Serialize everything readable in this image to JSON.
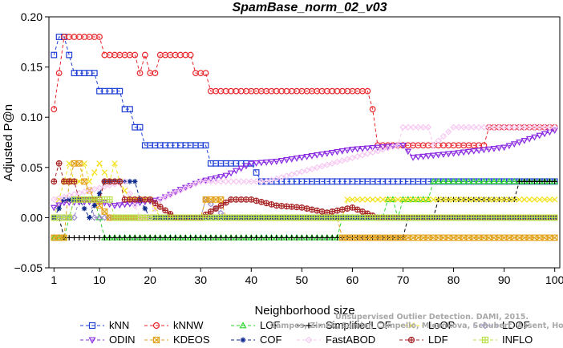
{
  "chart_data": {
    "type": "line",
    "title": "SpamBase_norm_02_v03",
    "xlabel": "Neighborhood size",
    "ylabel": "Adjusted P@n",
    "xlim": [
      0,
      101
    ],
    "ylim": [
      -0.05,
      0.2
    ],
    "xticks": [
      "1",
      "10",
      "20",
      "30",
      "40",
      "50",
      "60",
      "70",
      "80",
      "90",
      "100"
    ],
    "yticks": [
      "−0.05",
      "0.00",
      "0.05",
      "0.10",
      "0.15",
      "0.20"
    ],
    "grid": false,
    "legend": "bottom",
    "series": [
      {
        "name": "kNN",
        "color": "#1f3fd6",
        "marker": "square",
        "points": [
          [
            1,
            0.162
          ],
          [
            2,
            0.18
          ],
          [
            3,
            0.18
          ],
          [
            4,
            0.162
          ],
          [
            5,
            0.144
          ],
          [
            9,
            0.144
          ],
          [
            10,
            0.126
          ],
          [
            14,
            0.126
          ],
          [
            15,
            0.108
          ],
          [
            16,
            0.108
          ],
          [
            17,
            0.09
          ],
          [
            18,
            0.09
          ],
          [
            19,
            0.072
          ],
          [
            31,
            0.072
          ],
          [
            32,
            0.054
          ],
          [
            40,
            0.054
          ],
          [
            41,
            0.045
          ],
          [
            42,
            0.036
          ],
          [
            100,
            0.036
          ]
        ]
      },
      {
        "name": "kNNW",
        "color": "#e8262b",
        "marker": "circle",
        "points": [
          [
            1,
            0.108
          ],
          [
            2,
            0.144
          ],
          [
            3,
            0.18
          ],
          [
            10,
            0.18
          ],
          [
            11,
            0.162
          ],
          [
            17,
            0.162
          ],
          [
            18,
            0.144
          ],
          [
            19,
            0.162
          ],
          [
            20,
            0.144
          ],
          [
            21,
            0.144
          ],
          [
            22,
            0.162
          ],
          [
            28,
            0.162
          ],
          [
            29,
            0.144
          ],
          [
            31,
            0.144
          ],
          [
            32,
            0.126
          ],
          [
            63,
            0.126
          ],
          [
            64,
            0.108
          ],
          [
            65,
            0.072
          ],
          [
            86,
            0.072
          ],
          [
            87,
            0.09
          ],
          [
            100,
            0.09
          ]
        ]
      },
      {
        "name": "LOF",
        "color": "#2ed42e",
        "marker": "triangle",
        "points": [
          [
            1,
            -0.02
          ],
          [
            2,
            -0.02
          ],
          [
            3,
            -0.02
          ],
          [
            4,
            0.0
          ],
          [
            5,
            0.018
          ],
          [
            9,
            0.018
          ],
          [
            10,
            0.0
          ],
          [
            11,
            -0.02
          ],
          [
            57,
            -0.02
          ],
          [
            58,
            0.0
          ],
          [
            66,
            0.0
          ],
          [
            67,
            0.018
          ],
          [
            68,
            0.018
          ],
          [
            69,
            0.0
          ],
          [
            70,
            0.018
          ],
          [
            75,
            0.018
          ],
          [
            76,
            0.036
          ],
          [
            100,
            0.036
          ]
        ]
      },
      {
        "name": "SimplifiedLOF",
        "color": "#000000",
        "marker": "plus",
        "points": [
          [
            1,
            0.0
          ],
          [
            2,
            0.0
          ],
          [
            3,
            -0.02
          ],
          [
            57,
            -0.02
          ],
          [
            58,
            -0.02
          ],
          [
            70,
            -0.02
          ],
          [
            71,
            0.0
          ],
          [
            76,
            0.0
          ],
          [
            77,
            0.018
          ],
          [
            92,
            0.018
          ],
          [
            93,
            0.036
          ],
          [
            100,
            0.036
          ]
        ]
      },
      {
        "name": "LoOP",
        "color": "#f2e21c",
        "marker": "x",
        "points": [
          [
            1,
            0.0
          ],
          [
            2,
            0.018
          ],
          [
            3,
            0.036
          ],
          [
            4,
            0.054
          ],
          [
            5,
            0.036
          ],
          [
            6,
            0.036
          ],
          [
            7,
            0.054
          ],
          [
            8,
            0.036
          ],
          [
            10,
            0.054
          ],
          [
            12,
            0.036
          ],
          [
            13,
            0.054
          ],
          [
            14,
            0.036
          ],
          [
            16,
            0.018
          ],
          [
            20,
            0.018
          ],
          [
            22,
            0.0
          ],
          [
            58,
            0.0
          ],
          [
            59,
            0.018
          ],
          [
            100,
            0.018
          ]
        ]
      },
      {
        "name": "LDOF",
        "color": "#9a8cc8",
        "marker": "diamond",
        "points": [
          [
            1,
            0.0
          ],
          [
            5,
            0.0
          ],
          [
            6,
            0.018
          ],
          [
            8,
            0.018
          ],
          [
            9,
            0.0
          ],
          [
            30,
            0.0
          ],
          [
            31,
            0.018
          ],
          [
            35,
            0.0
          ],
          [
            100,
            0.0
          ]
        ]
      },
      {
        "name": "ODIN",
        "color": "#8a2be2",
        "marker": "triangle-down",
        "points": [
          [
            1,
            0.01
          ],
          [
            3,
            0.015
          ],
          [
            10,
            0.016
          ],
          [
            13,
            0.012
          ],
          [
            18,
            0.015
          ],
          [
            22,
            0.018
          ],
          [
            26,
            0.028
          ],
          [
            30,
            0.036
          ],
          [
            35,
            0.042
          ],
          [
            40,
            0.054
          ],
          [
            45,
            0.056
          ],
          [
            50,
            0.06
          ],
          [
            55,
            0.064
          ],
          [
            60,
            0.068
          ],
          [
            70,
            0.072
          ],
          [
            72,
            0.06
          ],
          [
            80,
            0.064
          ],
          [
            90,
            0.07
          ],
          [
            100,
            0.087
          ]
        ]
      },
      {
        "name": "KDEOS",
        "color": "#e3a21a",
        "marker": "square-x",
        "points": [
          [
            1,
            -0.02
          ],
          [
            3,
            -0.02
          ],
          [
            4,
            0.036
          ],
          [
            5,
            0.054
          ],
          [
            6,
            0.054
          ],
          [
            7,
            0.036
          ],
          [
            9,
            0.018
          ],
          [
            12,
            0.0
          ],
          [
            30,
            0.0
          ],
          [
            31,
            0.018
          ],
          [
            34,
            0.018
          ],
          [
            35,
            0.0
          ],
          [
            57,
            0.0
          ],
          [
            58,
            -0.02
          ],
          [
            100,
            -0.02
          ]
        ]
      },
      {
        "name": "COF",
        "color": "#0d2a8c",
        "marker": "asterisk",
        "points": [
          [
            1,
            0.0
          ],
          [
            3,
            0.018
          ],
          [
            6,
            0.018
          ],
          [
            8,
            0.0
          ],
          [
            11,
            0.036
          ],
          [
            17,
            0.036
          ],
          [
            18,
            0.018
          ],
          [
            20,
            0.0
          ],
          [
            100,
            0.0
          ]
        ]
      },
      {
        "name": "FastABOD",
        "color": "#f7c8f2",
        "marker": "diamond",
        "points": [
          [
            1,
            0.018
          ],
          [
            15,
            0.036
          ],
          [
            18,
            0.0
          ],
          [
            20,
            0.0
          ],
          [
            22,
            0.018
          ],
          [
            30,
            0.036
          ],
          [
            43,
            0.036
          ],
          [
            69,
            0.072
          ],
          [
            70,
            0.09
          ],
          [
            75,
            0.09
          ],
          [
            76,
            0.072
          ],
          [
            80,
            0.09
          ],
          [
            100,
            0.09
          ]
        ]
      },
      {
        "name": "LDF",
        "color": "#a82424",
        "marker": "circle-plus",
        "points": [
          [
            1,
            0.036
          ],
          [
            2,
            0.054
          ],
          [
            3,
            0.036
          ],
          [
            5,
            0.036
          ],
          [
            6,
            0.018
          ],
          [
            10,
            0.018
          ],
          [
            11,
            0.036
          ],
          [
            14,
            0.036
          ],
          [
            15,
            0.018
          ],
          [
            20,
            0.018
          ],
          [
            25,
            0.0
          ],
          [
            30,
            0.0
          ],
          [
            36,
            0.018
          ],
          [
            40,
            0.018
          ],
          [
            45,
            0.012
          ],
          [
            50,
            0.01
          ],
          [
            55,
            0.005
          ],
          [
            60,
            0.01
          ],
          [
            65,
            0.0
          ],
          [
            70,
            0.0
          ],
          [
            72,
            0.0
          ],
          [
            75,
            0.0
          ],
          [
            100,
            0.0
          ]
        ]
      },
      {
        "name": "INFLO",
        "color": "#b8e04a",
        "marker": "square-cross",
        "points": [
          [
            1,
            0.0
          ],
          [
            4,
            0.0
          ],
          [
            5,
            0.018
          ],
          [
            12,
            0.018
          ],
          [
            13,
            0.0
          ],
          [
            57,
            0.0
          ],
          [
            58,
            0.0
          ],
          [
            100,
            0.0
          ]
        ]
      }
    ]
  },
  "watermark": {
    "line1": "Unsupervised Outlier Detection. DAMI, 2015.",
    "line2": "Campos, Zimek, Sander, Campello, Micenkova, Schubert, Assent, Houle"
  }
}
